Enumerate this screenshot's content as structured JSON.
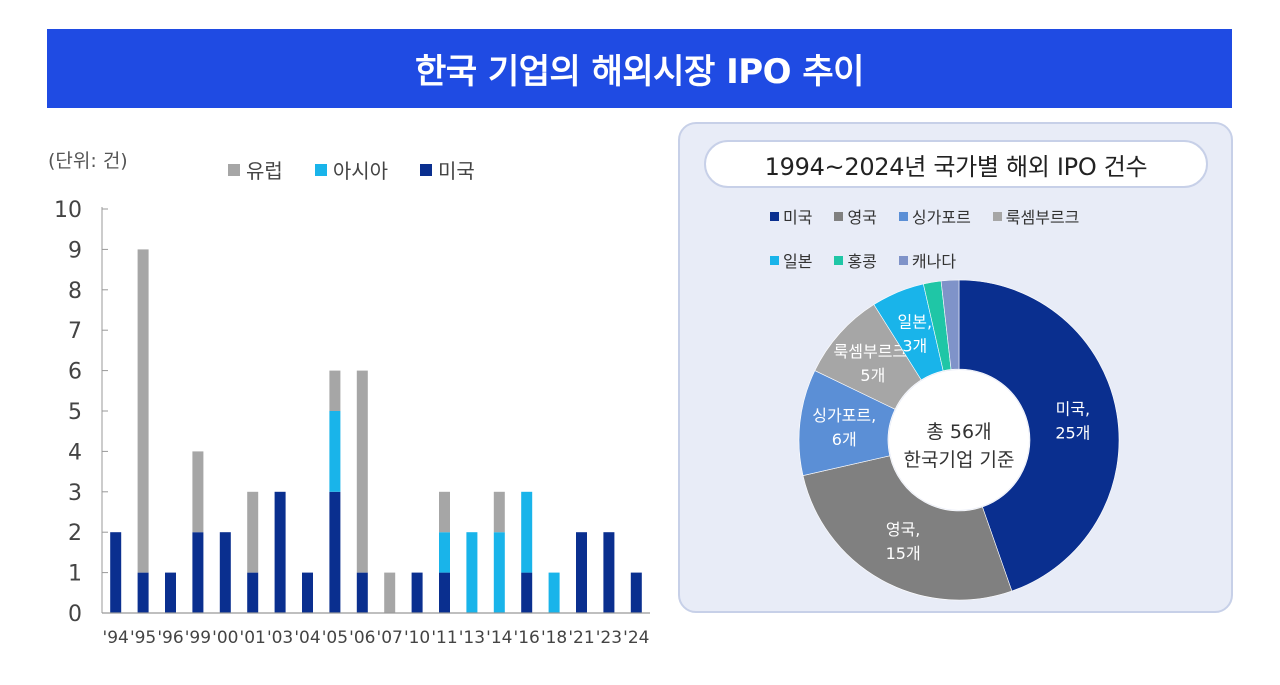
{
  "title": "한국 기업의 해외시장 IPO 추이",
  "colors": {
    "banner": "#1f4be3",
    "europe": "#a6a6a6",
    "asia": "#19b4ea",
    "usa": "#0a2f8f",
    "panel_bg": "#e8ecf7"
  },
  "chart_data": [
    {
      "type": "bar",
      "stacked": true,
      "unit_label": "(단위: 건)",
      "categories": [
        "'94",
        "'95",
        "'96",
        "'99",
        "'00",
        "'01",
        "'03",
        "'04",
        "'05",
        "'06",
        "'07",
        "'10",
        "'11",
        "'13",
        "'14",
        "'16",
        "'18",
        "'21",
        "'23",
        "'24"
      ],
      "series": [
        {
          "name": "미국",
          "values": [
            2,
            1,
            1,
            2,
            2,
            1,
            3,
            1,
            3,
            1,
            0,
            1,
            1,
            0,
            0,
            1,
            0,
            2,
            2,
            1
          ]
        },
        {
          "name": "아시아",
          "values": [
            0,
            0,
            0,
            0,
            0,
            0,
            0,
            0,
            2,
            0,
            0,
            0,
            1,
            2,
            2,
            2,
            1,
            0,
            0,
            0
          ]
        },
        {
          "name": "유럽",
          "values": [
            0,
            8,
            0,
            2,
            0,
            2,
            0,
            0,
            1,
            5,
            1,
            0,
            1,
            0,
            1,
            0,
            0,
            0,
            0,
            0
          ]
        }
      ],
      "legend_order": [
        "유럽",
        "아시아",
        "미국"
      ],
      "yticks": [
        "0",
        "1",
        "2",
        "3",
        "4",
        "5",
        "6",
        "7",
        "8",
        "9",
        "10"
      ],
      "ylim": [
        0,
        10
      ],
      "grid": false
    },
    {
      "type": "pie",
      "donut": true,
      "title": "1994~2024년 국가별 해외 IPO 건수",
      "center_lines": [
        "총 56개",
        "한국기업 기준"
      ],
      "slices": [
        {
          "name": "미국",
          "value": 25,
          "color": "#0a2f8f",
          "label_lines": [
            "미국,",
            "25개"
          ]
        },
        {
          "name": "영국",
          "value": 15,
          "color": "#808080",
          "label_lines": [
            "영국,",
            "15개"
          ]
        },
        {
          "name": "싱가포르",
          "value": 6,
          "color": "#5b8fd6",
          "label_lines": [
            "싱가포르,",
            "6개"
          ]
        },
        {
          "name": "룩셈부르크",
          "value": 5,
          "color": "#a6a6a6",
          "label_lines": [
            "룩셈부르크,",
            "5개"
          ]
        },
        {
          "name": "일본",
          "value": 3,
          "color": "#19b4ea",
          "label_lines": [
            "일본,",
            "3개"
          ]
        },
        {
          "name": "홍콩",
          "value": 1,
          "color": "#1fc6a6",
          "label_lines": []
        },
        {
          "name": "캐나다",
          "value": 1,
          "color": "#7f93c9",
          "label_lines": []
        }
      ]
    }
  ]
}
